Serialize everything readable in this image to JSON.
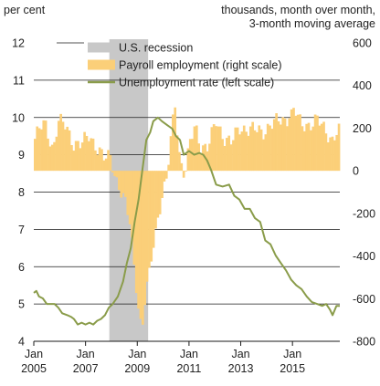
{
  "chart_data": {
    "type": "bar+line",
    "title": "",
    "left_axis_label": "per cent",
    "right_axis_label": [
      "thousands, month over month,",
      "3-month moving average"
    ],
    "left_ylim": [
      4,
      12
    ],
    "left_ticks": [
      "4",
      "5",
      "6",
      "7",
      "8",
      "9",
      "10",
      "11",
      "12"
    ],
    "right_ylim": [
      -800,
      600
    ],
    "right_ticks": [
      "-800",
      "-600",
      "-400",
      "-200",
      "0",
      "200",
      "400",
      "600"
    ],
    "xlim": [
      2005.0,
      2016.83
    ],
    "x_ticks": [
      {
        "year": 2005,
        "top": "Jan",
        "bottom": "2005"
      },
      {
        "year": 2007,
        "top": "Jan",
        "bottom": "2007"
      },
      {
        "year": 2009,
        "top": "Jan",
        "bottom": "2009"
      },
      {
        "year": 2011,
        "top": "Jan",
        "bottom": "2011"
      },
      {
        "year": 2013,
        "top": "Jan",
        "bottom": "2013"
      },
      {
        "year": 2015,
        "top": "Jan",
        "bottom": "2015"
      }
    ],
    "grid": "horizontal",
    "legend_position": "top",
    "legend": [
      {
        "label": "U.S. recession",
        "kind": "band",
        "color": "#c8c8c8"
      },
      {
        "label": "Payroll employment (right scale)",
        "kind": "bar",
        "color": "#fbcf79"
      },
      {
        "label": "Unemployment rate (left scale)",
        "kind": "line",
        "color": "#8a9c4a"
      }
    ],
    "recession": {
      "start": 2007.92,
      "end": 2009.42
    },
    "payroll_keypoints": [
      [
        2005.0,
        150
      ],
      [
        2005.2,
        200
      ],
      [
        2005.4,
        220
      ],
      [
        2005.7,
        100
      ],
      [
        2005.9,
        230
      ],
      [
        2006.2,
        210
      ],
      [
        2006.5,
        130
      ],
      [
        2006.8,
        120
      ],
      [
        2007.1,
        170
      ],
      [
        2007.4,
        110
      ],
      [
        2007.7,
        50
      ],
      [
        2007.92,
        70
      ],
      [
        2008.1,
        -20
      ],
      [
        2008.3,
        -90
      ],
      [
        2008.5,
        -160
      ],
      [
        2008.7,
        -260
      ],
      [
        2008.9,
        -530
      ],
      [
        2009.05,
        -690
      ],
      [
        2009.15,
        -740
      ],
      [
        2009.3,
        -560
      ],
      [
        2009.5,
        -420
      ],
      [
        2009.7,
        -250
      ],
      [
        2009.9,
        -120
      ],
      [
        2010.1,
        -40
      ],
      [
        2010.3,
        200
      ],
      [
        2010.42,
        310
      ],
      [
        2010.6,
        60
      ],
      [
        2010.8,
        -20
      ],
      [
        2011.0,
        130
      ],
      [
        2011.2,
        210
      ],
      [
        2011.4,
        120
      ],
      [
        2011.7,
        110
      ],
      [
        2012.0,
        230
      ],
      [
        2012.3,
        160
      ],
      [
        2012.6,
        130
      ],
      [
        2012.9,
        200
      ],
      [
        2013.2,
        200
      ],
      [
        2013.5,
        190
      ],
      [
        2013.8,
        180
      ],
      [
        2014.1,
        220
      ],
      [
        2014.4,
        230
      ],
      [
        2014.7,
        240
      ],
      [
        2015.0,
        290
      ],
      [
        2015.3,
        210
      ],
      [
        2015.6,
        220
      ],
      [
        2015.9,
        240
      ],
      [
        2016.2,
        190
      ],
      [
        2016.5,
        150
      ],
      [
        2016.7,
        190
      ],
      [
        2016.83,
        180
      ]
    ],
    "unemployment": [
      [
        2005.0,
        5.3
      ],
      [
        2005.1,
        5.35
      ],
      [
        2005.2,
        5.2
      ],
      [
        2005.35,
        5.15
      ],
      [
        2005.5,
        5.0
      ],
      [
        2005.65,
        5.0
      ],
      [
        2005.8,
        5.0
      ],
      [
        2005.95,
        4.9
      ],
      [
        2006.1,
        4.75
      ],
      [
        2006.3,
        4.7
      ],
      [
        2006.45,
        4.65
      ],
      [
        2006.55,
        4.6
      ],
      [
        2006.7,
        4.45
      ],
      [
        2006.85,
        4.5
      ],
      [
        2007.0,
        4.45
      ],
      [
        2007.15,
        4.5
      ],
      [
        2007.3,
        4.45
      ],
      [
        2007.45,
        4.55
      ],
      [
        2007.6,
        4.6
      ],
      [
        2007.75,
        4.7
      ],
      [
        2007.9,
        4.9
      ],
      [
        2008.05,
        5.0
      ],
      [
        2008.25,
        5.2
      ],
      [
        2008.45,
        5.6
      ],
      [
        2008.6,
        6.1
      ],
      [
        2008.75,
        6.5
      ],
      [
        2008.9,
        7.2
      ],
      [
        2009.05,
        7.8
      ],
      [
        2009.2,
        8.6
      ],
      [
        2009.35,
        9.4
      ],
      [
        2009.5,
        9.6
      ],
      [
        2009.62,
        9.9
      ],
      [
        2009.8,
        10.0
      ],
      [
        2009.95,
        9.9
      ],
      [
        2010.15,
        9.8
      ],
      [
        2010.35,
        9.7
      ],
      [
        2010.5,
        9.5
      ],
      [
        2010.65,
        9.4
      ],
      [
        2010.8,
        9.0
      ],
      [
        2011.0,
        9.1
      ],
      [
        2011.2,
        9.0
      ],
      [
        2011.4,
        9.05
      ],
      [
        2011.55,
        9.0
      ],
      [
        2011.7,
        8.85
      ],
      [
        2011.85,
        8.6
      ],
      [
        2012.05,
        8.2
      ],
      [
        2012.3,
        8.15
      ],
      [
        2012.55,
        8.2
      ],
      [
        2012.75,
        7.9
      ],
      [
        2012.95,
        7.8
      ],
      [
        2013.15,
        7.55
      ],
      [
        2013.35,
        7.55
      ],
      [
        2013.55,
        7.3
      ],
      [
        2013.75,
        7.2
      ],
      [
        2013.95,
        6.7
      ],
      [
        2014.15,
        6.6
      ],
      [
        2014.35,
        6.3
      ],
      [
        2014.55,
        6.1
      ],
      [
        2014.75,
        5.9
      ],
      [
        2014.95,
        5.65
      ],
      [
        2015.15,
        5.5
      ],
      [
        2015.35,
        5.4
      ],
      [
        2015.55,
        5.2
      ],
      [
        2015.75,
        5.05
      ],
      [
        2015.95,
        5.0
      ],
      [
        2016.15,
        4.95
      ],
      [
        2016.3,
        5.0
      ],
      [
        2016.45,
        4.85
      ],
      [
        2016.55,
        4.7
      ],
      [
        2016.7,
        4.95
      ],
      [
        2016.83,
        4.95
      ]
    ]
  }
}
